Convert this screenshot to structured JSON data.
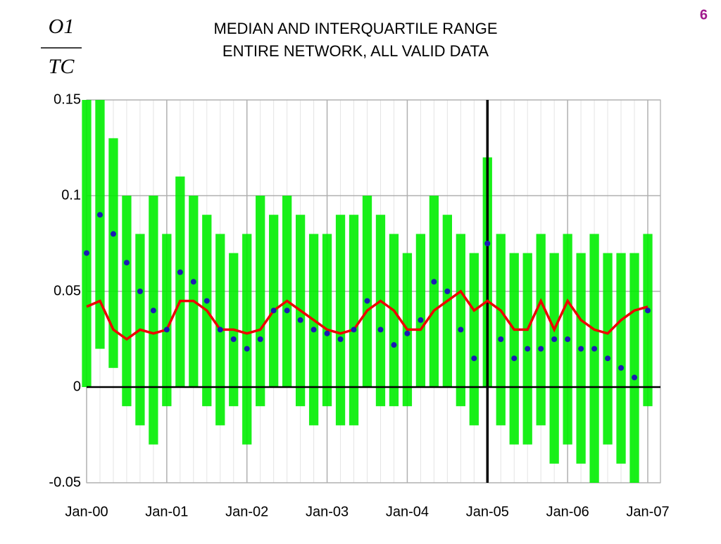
{
  "slide_number": "6",
  "chart_data": {
    "type": "range-line",
    "title": [
      "MEDIAN AND INTERQUARTILE RANGE",
      "ENTIRE NETWORK, ALL VALID DATA"
    ],
    "y_label": {
      "numerator": "O1",
      "denominator": "TC"
    },
    "categories": [
      "Jan-00",
      null,
      null,
      null,
      null,
      null,
      "Jan-01",
      null,
      null,
      null,
      null,
      null,
      "Jan-02",
      null,
      null,
      null,
      null,
      null,
      "Jan-03",
      null,
      null,
      null,
      null,
      null,
      "Jan-04",
      null,
      null,
      null,
      null,
      null,
      "Jan-05",
      null,
      null,
      null,
      null,
      null,
      "Jan-06",
      null,
      null,
      null,
      null,
      null,
      "Jan-07"
    ],
    "iqr_low": [
      0.0,
      0.02,
      0.01,
      -0.01,
      -0.02,
      -0.03,
      -0.01,
      0.0,
      0.0,
      -0.01,
      -0.02,
      -0.01,
      -0.03,
      -0.01,
      0.0,
      0.0,
      -0.01,
      -0.02,
      -0.01,
      -0.02,
      -0.02,
      0.0,
      -0.01,
      -0.01,
      -0.01,
      0.0,
      0.0,
      0.0,
      -0.01,
      -0.02,
      0.0,
      -0.02,
      -0.03,
      -0.03,
      -0.02,
      -0.04,
      -0.03,
      -0.04,
      -0.05,
      -0.03,
      -0.04,
      -0.05,
      -0.01
    ],
    "iqr_high": [
      0.15,
      0.15,
      0.13,
      0.1,
      0.08,
      0.1,
      0.08,
      0.11,
      0.1,
      0.09,
      0.08,
      0.07,
      0.08,
      0.1,
      0.09,
      0.1,
      0.09,
      0.08,
      0.08,
      0.09,
      0.09,
      0.1,
      0.09,
      0.08,
      0.07,
      0.08,
      0.1,
      0.09,
      0.08,
      0.07,
      0.12,
      0.08,
      0.07,
      0.07,
      0.08,
      0.07,
      0.08,
      0.07,
      0.08,
      0.07,
      0.07,
      0.07,
      0.08
    ],
    "iqr_color": "#00ee00",
    "median": [
      0.042,
      0.045,
      0.03,
      0.025,
      0.03,
      0.028,
      0.03,
      0.045,
      0.045,
      0.04,
      0.03,
      0.03,
      0.028,
      0.03,
      0.04,
      0.045,
      0.04,
      0.035,
      0.03,
      0.028,
      0.03,
      0.04,
      0.045,
      0.04,
      0.03,
      0.03,
      0.04,
      0.045,
      0.05,
      0.04,
      0.045,
      0.04,
      0.03,
      0.03,
      0.045,
      0.03,
      0.045,
      0.035,
      0.03,
      0.028,
      0.035,
      0.04,
      0.042
    ],
    "median_color": "#ee0000",
    "points": [
      0.07,
      0.09,
      0.08,
      0.065,
      0.05,
      0.04,
      0.03,
      0.06,
      0.055,
      0.045,
      0.03,
      0.025,
      0.02,
      0.025,
      0.04,
      0.04,
      0.035,
      0.03,
      0.028,
      0.025,
      0.03,
      0.045,
      0.03,
      0.022,
      0.028,
      0.035,
      0.055,
      0.05,
      0.03,
      0.015,
      0.075,
      0.025,
      0.015,
      0.02,
      0.02,
      0.025,
      0.025,
      0.02,
      0.02,
      0.015,
      0.01,
      0.005,
      0.04
    ],
    "points_color": "#1a1ab4",
    "ylim": [
      -0.05,
      0.15
    ],
    "yticks": [
      -0.05,
      0,
      0.05,
      0.1,
      0.15
    ],
    "grid": true,
    "zero_line": true,
    "vertical_line_at": "Jan-05"
  }
}
